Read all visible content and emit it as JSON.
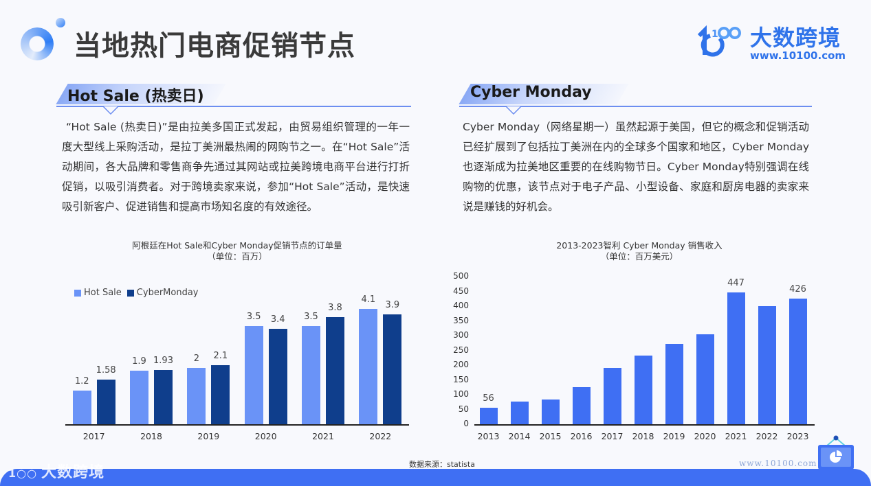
{
  "header": {
    "title": "当地热门电商促销节点",
    "brand": {
      "name": "大数跨境",
      "url": "www.10100.com"
    }
  },
  "sections": [
    {
      "title": "Hot Sale (热卖日)",
      "text": "“Hot Sale (热卖日)”是由拉美多国正式发起，由贸易组织管理的一年一度大型线上采购活动，是拉丁美洲最热闹的网购节之一。在“Hot Sale”活动期间，各大品牌和零售商争先通过其网站或拉美跨境电商平台进行打折促销，以吸引消费者。对于跨境卖家来说，参加“Hot Sale”活动，是快速吸引新客户、促进销售和提高市场知名度的有效途径。"
    },
    {
      "title": "Cyber Monday",
      "text": "Cyber Monday（网络星期一）虽然起源于美国，但它的概念和促销活动已经扩展到了包括拉丁美洲在内的全球多个国家和地区，Cyber Monday也逐渐成为拉美地区重要的在线购物节日。Cyber Monday特别强调在线购物的优惠，该节点对于电子产品、小型设备、家庭和厨房电器的卖家来说是赚钱的好机会。"
    }
  ],
  "chart_data": [
    {
      "type": "bar",
      "title": "阿根廷在Hot Sale和Cyber Monday促销节点的订单量",
      "subtitle": "（单位：百万）",
      "categories": [
        "2017",
        "2018",
        "2019",
        "2020",
        "2021",
        "2022"
      ],
      "series": [
        {
          "name": "Hot Sale",
          "color": "#6a93f7",
          "values": [
            1.2,
            1.9,
            2,
            3.5,
            3.5,
            4.1
          ],
          "labels": [
            "1.2",
            "1.9",
            "2",
            "3.5",
            "3.5",
            "4.1"
          ]
        },
        {
          "name": "CyberMonday",
          "color": "#0f3e8c",
          "values": [
            1.58,
            1.93,
            2.1,
            3.4,
            3.8,
            3.9
          ],
          "labels": [
            "1.58",
            "1.93",
            "2.1",
            "3.4",
            "3.8",
            "3.9"
          ]
        }
      ],
      "xlabel": "",
      "ylabel": "",
      "ylim": [
        0,
        4.3
      ],
      "legend_position": "top-left",
      "grid": false
    },
    {
      "type": "bar",
      "title": "2013-2023智利 Cyber Monday 销售收入",
      "subtitle": "（单位：百万美元）",
      "categories": [
        "2013",
        "2014",
        "2015",
        "2016",
        "2017",
        "2018",
        "2019",
        "2020",
        "2021",
        "2022",
        "2023"
      ],
      "values": [
        56,
        77,
        84,
        126,
        191,
        233,
        272,
        305,
        447,
        400,
        426
      ],
      "labels": [
        "56",
        "",
        "",
        "",
        "",
        "",
        "",
        "",
        "447",
        "",
        "426"
      ],
      "color": "#3f6ff3",
      "yticks": [
        "0",
        "50",
        "100",
        "150",
        "200",
        "250",
        "300",
        "350",
        "400",
        "450",
        "500"
      ],
      "xlabel": "",
      "ylabel": "",
      "ylim": [
        0,
        500
      ],
      "grid": false
    }
  ],
  "footer": {
    "source": "数据来源：statista",
    "url": "www.10100.com",
    "brand": "大数跨境"
  }
}
